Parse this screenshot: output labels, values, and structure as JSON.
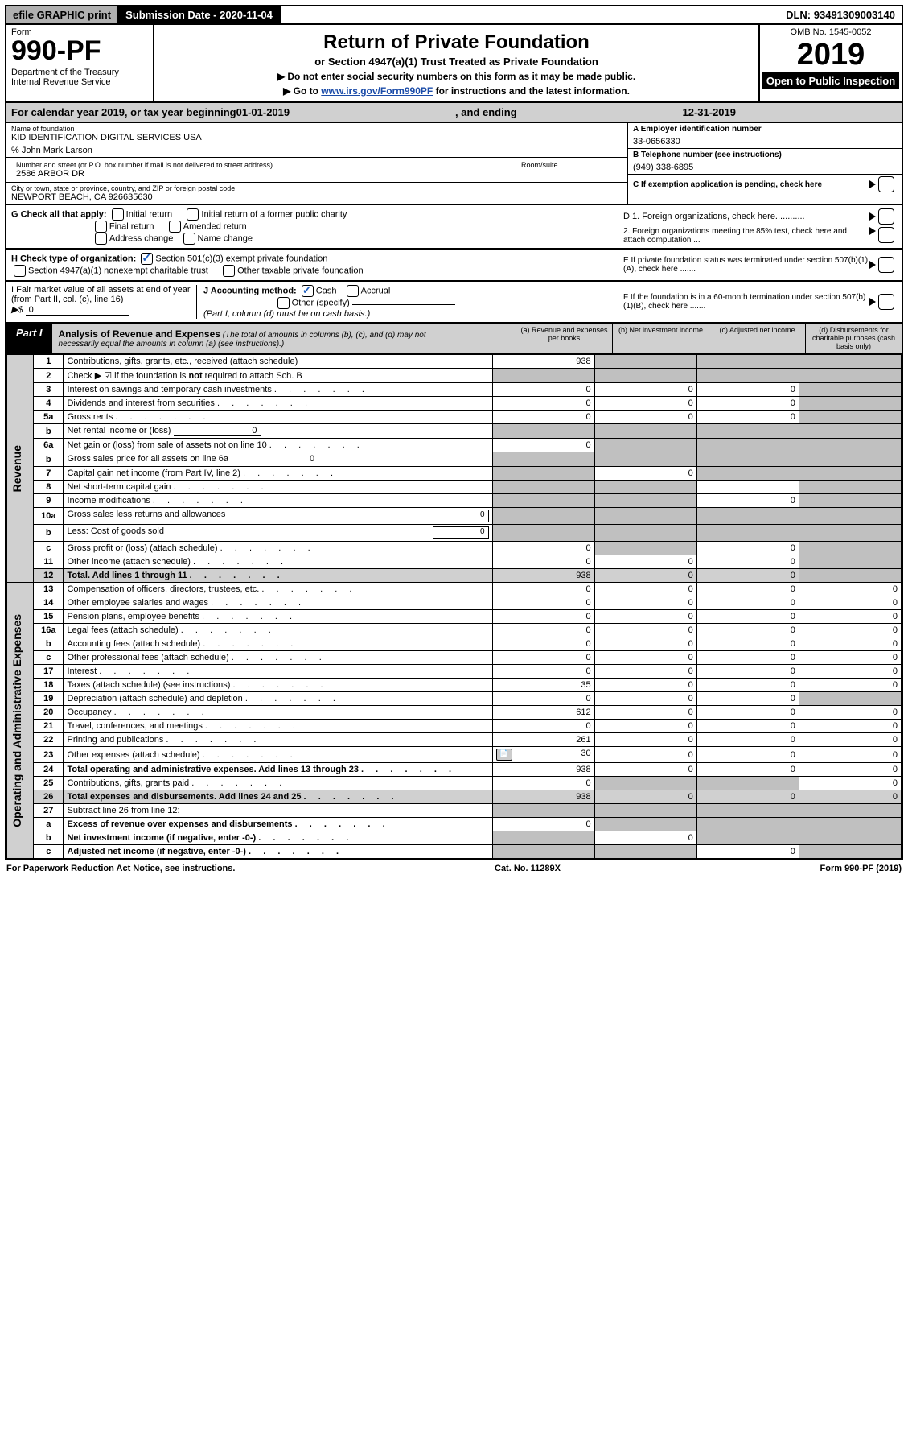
{
  "topbar": {
    "efile": "efile GRAPHIC print",
    "subdate_label": "Submission Date - ",
    "subdate": "2020-11-04",
    "dln_label": "DLN: ",
    "dln": "93491309003140"
  },
  "header": {
    "form_label": "Form",
    "form_num": "990-PF",
    "dept": "Department of the Treasury",
    "irs": "Internal Revenue Service",
    "title": "Return of Private Foundation",
    "subtitle": "or Section 4947(a)(1) Trust Treated as Private Foundation",
    "note1": "▶ Do not enter social security numbers on this form as it may be made public.",
    "note2_pre": "▶ Go to ",
    "note2_link": "www.irs.gov/Form990PF",
    "note2_post": " for instructions and the latest information.",
    "omb": "OMB No. 1545-0052",
    "year": "2019",
    "open": "Open to Public Inspection"
  },
  "calyear": {
    "pre": "For calendar year 2019, or tax year beginning ",
    "begin": "01-01-2019",
    "mid": ", and ending ",
    "end": "12-31-2019"
  },
  "info": {
    "name_label": "Name of foundation",
    "name": "KID IDENTIFICATION DIGITAL SERVICES USA",
    "care_of": "% John Mark Larson",
    "addr_label": "Number and street (or P.O. box number if mail is not delivered to street address)",
    "addr": "2586 ARBOR DR",
    "room_label": "Room/suite",
    "city_label": "City or town, state or province, country, and ZIP or foreign postal code",
    "city": "NEWPORT BEACH, CA  926635630",
    "ein_label": "A Employer identification number",
    "ein": "33-0656330",
    "tel_label": "B Telephone number (see instructions)",
    "tel": "(949) 338-6895",
    "c_label": "C If exemption application is pending, check here"
  },
  "checks": {
    "g_label": "G Check all that apply:",
    "g_opts": [
      "Initial return",
      "Initial return of a former public charity",
      "Final return",
      "Amended return",
      "Address change",
      "Name change"
    ],
    "h_label": "H Check type of organization:",
    "h_opts": [
      "Section 501(c)(3) exempt private foundation",
      "Section 4947(a)(1) nonexempt charitable trust",
      "Other taxable private foundation"
    ],
    "h_checked": 0,
    "i_label": "I Fair market value of all assets at end of year (from Part II, col. (c), line 16)",
    "i_prefix": "▶$",
    "i_val": "0",
    "j_label": "J Accounting method:",
    "j_opts": [
      "Cash",
      "Accrual",
      "Other (specify)"
    ],
    "j_checked": 0,
    "j_note": "(Part I, column (d) must be on cash basis.)",
    "d1": "D 1. Foreign organizations, check here............",
    "d2": "2. Foreign organizations meeting the 85% test, check here and attach computation ...",
    "e": "E  If private foundation status was terminated under section 507(b)(1)(A), check here .......",
    "f": "F  If the foundation is in a 60-month termination under section 507(b)(1)(B), check here ......."
  },
  "part1": {
    "tab": "Part I",
    "title": "Analysis of Revenue and Expenses",
    "subtitle": "(The total of amounts in columns (b), (c), and (d) may not necessarily equal the amounts in column (a) (see instructions).)",
    "cols": {
      "a": "(a)   Revenue and expenses per books",
      "b": "(b)   Net investment income",
      "c": "(c)   Adjusted net income",
      "d": "(d)   Disbursements for charitable purposes (cash basis only)"
    },
    "side_rev": "Revenue",
    "side_exp": "Operating and Administrative Expenses"
  },
  "rows": [
    {
      "n": "1",
      "desc": "Contributions, gifts, grants, etc., received (attach schedule)",
      "a": "938",
      "b": "",
      "c": "",
      "d": "",
      "shade": [
        "b",
        "c",
        "d"
      ]
    },
    {
      "n": "2",
      "desc": "Check ▶ ☑ if the foundation is not required to attach Sch. B",
      "a": "",
      "b": "",
      "c": "",
      "d": "",
      "shade": [
        "a",
        "b",
        "c",
        "d"
      ],
      "bold_not": true
    },
    {
      "n": "3",
      "desc": "Interest on savings and temporary cash investments",
      "a": "0",
      "b": "0",
      "c": "0",
      "d": "",
      "shade": [
        "d"
      ]
    },
    {
      "n": "4",
      "desc": "Dividends and interest from securities",
      "a": "0",
      "b": "0",
      "c": "0",
      "d": "",
      "shade": [
        "d"
      ]
    },
    {
      "n": "5a",
      "desc": "Gross rents",
      "a": "0",
      "b": "0",
      "c": "0",
      "d": "",
      "shade": [
        "d"
      ]
    },
    {
      "n": "b",
      "desc": "Net rental income or (loss)",
      "inline": "0",
      "a": "",
      "b": "",
      "c": "",
      "d": "",
      "shade": [
        "a",
        "b",
        "c",
        "d"
      ]
    },
    {
      "n": "6a",
      "desc": "Net gain or (loss) from sale of assets not on line 10",
      "a": "0",
      "b": "",
      "c": "",
      "d": "",
      "shade": [
        "b",
        "c",
        "d"
      ]
    },
    {
      "n": "b",
      "desc": "Gross sales price for all assets on line 6a",
      "inline": "0",
      "a": "",
      "b": "",
      "c": "",
      "d": "",
      "shade": [
        "a",
        "b",
        "c",
        "d"
      ]
    },
    {
      "n": "7",
      "desc": "Capital gain net income (from Part IV, line 2)",
      "a": "",
      "b": "0",
      "c": "",
      "d": "",
      "shade": [
        "a",
        "c",
        "d"
      ]
    },
    {
      "n": "8",
      "desc": "Net short-term capital gain",
      "a": "",
      "b": "",
      "c": "",
      "d": "",
      "shade": [
        "a",
        "b",
        "d"
      ]
    },
    {
      "n": "9",
      "desc": "Income modifications",
      "a": "",
      "b": "",
      "c": "0",
      "d": "",
      "shade": [
        "a",
        "b",
        "d"
      ]
    },
    {
      "n": "10a",
      "desc": "Gross sales less returns and allowances",
      "rbox": "0",
      "a": "",
      "b": "",
      "c": "",
      "d": "",
      "shade": [
        "a",
        "b",
        "c",
        "d"
      ]
    },
    {
      "n": "b",
      "desc": "Less: Cost of goods sold",
      "rbox": "0",
      "a": "",
      "b": "",
      "c": "",
      "d": "",
      "shade": [
        "a",
        "b",
        "c",
        "d"
      ]
    },
    {
      "n": "c",
      "desc": "Gross profit or (loss) (attach schedule)",
      "a": "0",
      "b": "",
      "c": "0",
      "d": "",
      "shade": [
        "b",
        "d"
      ]
    },
    {
      "n": "11",
      "desc": "Other income (attach schedule)",
      "a": "0",
      "b": "0",
      "c": "0",
      "d": "",
      "shade": [
        "d"
      ]
    },
    {
      "n": "12",
      "desc": "Total. Add lines 1 through 11",
      "a": "938",
      "b": "0",
      "c": "0",
      "d": "",
      "shade": [
        "d"
      ],
      "bold": true,
      "row_shade": true
    },
    {
      "n": "13",
      "desc": "Compensation of officers, directors, trustees, etc.",
      "a": "0",
      "b": "0",
      "c": "0",
      "d": "0"
    },
    {
      "n": "14",
      "desc": "Other employee salaries and wages",
      "a": "0",
      "b": "0",
      "c": "0",
      "d": "0"
    },
    {
      "n": "15",
      "desc": "Pension plans, employee benefits",
      "a": "0",
      "b": "0",
      "c": "0",
      "d": "0"
    },
    {
      "n": "16a",
      "desc": "Legal fees (attach schedule)",
      "a": "0",
      "b": "0",
      "c": "0",
      "d": "0"
    },
    {
      "n": "b",
      "desc": "Accounting fees (attach schedule)",
      "a": "0",
      "b": "0",
      "c": "0",
      "d": "0"
    },
    {
      "n": "c",
      "desc": "Other professional fees (attach schedule)",
      "a": "0",
      "b": "0",
      "c": "0",
      "d": "0"
    },
    {
      "n": "17",
      "desc": "Interest",
      "a": "0",
      "b": "0",
      "c": "0",
      "d": "0"
    },
    {
      "n": "18",
      "desc": "Taxes (attach schedule) (see instructions)",
      "a": "35",
      "b": "0",
      "c": "0",
      "d": "0"
    },
    {
      "n": "19",
      "desc": "Depreciation (attach schedule) and depletion",
      "a": "0",
      "b": "0",
      "c": "0",
      "d": "",
      "shade": [
        "d"
      ]
    },
    {
      "n": "20",
      "desc": "Occupancy",
      "a": "612",
      "b": "0",
      "c": "0",
      "d": "0"
    },
    {
      "n": "21",
      "desc": "Travel, conferences, and meetings",
      "a": "0",
      "b": "0",
      "c": "0",
      "d": "0"
    },
    {
      "n": "22",
      "desc": "Printing and publications",
      "a": "261",
      "b": "0",
      "c": "0",
      "d": "0"
    },
    {
      "n": "23",
      "desc": "Other expenses (attach schedule)",
      "a": "30",
      "b": "0",
      "c": "0",
      "d": "0",
      "icon": true
    },
    {
      "n": "24",
      "desc": "Total operating and administrative expenses. Add lines 13 through 23",
      "a": "938",
      "b": "0",
      "c": "0",
      "d": "0",
      "bold": true
    },
    {
      "n": "25",
      "desc": "Contributions, gifts, grants paid",
      "a": "0",
      "b": "",
      "c": "",
      "d": "0",
      "shade": [
        "b",
        "c"
      ]
    },
    {
      "n": "26",
      "desc": "Total expenses and disbursements. Add lines 24 and 25",
      "a": "938",
      "b": "0",
      "c": "0",
      "d": "0",
      "bold": true,
      "row_shade": true
    },
    {
      "n": "27",
      "desc": "Subtract line 26 from line 12:",
      "a": "",
      "b": "",
      "c": "",
      "d": "",
      "shade": [
        "a",
        "b",
        "c",
        "d"
      ]
    },
    {
      "n": "a",
      "desc": "Excess of revenue over expenses and disbursements",
      "a": "0",
      "b": "",
      "c": "",
      "d": "",
      "shade": [
        "b",
        "c",
        "d"
      ],
      "bold": true
    },
    {
      "n": "b",
      "desc": "Net investment income (if negative, enter -0-)",
      "a": "",
      "b": "0",
      "c": "",
      "d": "",
      "shade": [
        "a",
        "c",
        "d"
      ],
      "bold": true
    },
    {
      "n": "c",
      "desc": "Adjusted net income (if negative, enter -0-)",
      "a": "",
      "b": "",
      "c": "0",
      "d": "",
      "shade": [
        "a",
        "b",
        "d"
      ],
      "bold": true
    }
  ],
  "footer": {
    "left": "For Paperwork Reduction Act Notice, see instructions.",
    "mid": "Cat. No. 11289X",
    "right": "Form 990-PF (2019)"
  }
}
